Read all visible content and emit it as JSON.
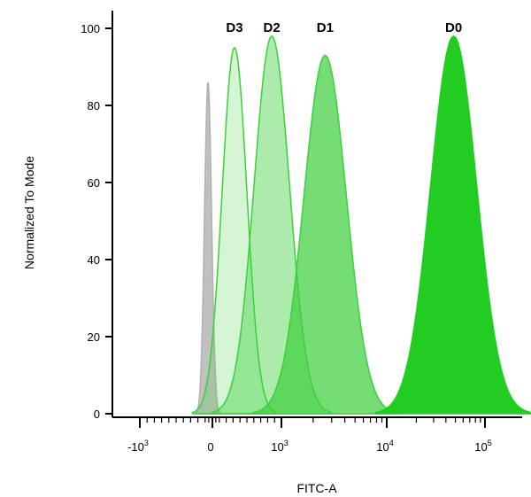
{
  "chart_data": {
    "type": "area",
    "title": "",
    "xlabel": "FITC-A",
    "ylabel": "Normalized To Mode",
    "x_scale": "biexponential",
    "x_ticks": [
      {
        "base": "-10",
        "exp": "3",
        "value": -1000
      },
      {
        "base": "0",
        "exp": "",
        "value": 0
      },
      {
        "base": "10",
        "exp": "3",
        "value": 1000
      },
      {
        "base": "10",
        "exp": "4",
        "value": 10000
      },
      {
        "base": "10",
        "exp": "5",
        "value": 100000
      }
    ],
    "y_ticks": [
      "0",
      "20",
      "40",
      "60",
      "80",
      "100"
    ],
    "ylim": [
      0,
      100
    ],
    "grid": false,
    "series": [
      {
        "name": "",
        "color": "#b0b0b0",
        "peak_x": -60,
        "peak_y": 86,
        "fill_opacity": 0.8
      },
      {
        "name": "D3",
        "color": "#3ccf3c",
        "peak_x": 320,
        "peak_y": 95,
        "fill_opacity": 0.22
      },
      {
        "name": "D2",
        "color": "#3ccf3c",
        "peak_x": 860,
        "peak_y": 98,
        "fill_opacity": 0.42
      },
      {
        "name": "D1",
        "color": "#3ccf3c",
        "peak_x": 2600,
        "peak_y": 93,
        "fill_opacity": 0.7
      },
      {
        "name": "D0",
        "color": "#22cc22",
        "peak_x": 48000,
        "peak_y": 98,
        "fill_opacity": 1.0
      }
    ]
  }
}
